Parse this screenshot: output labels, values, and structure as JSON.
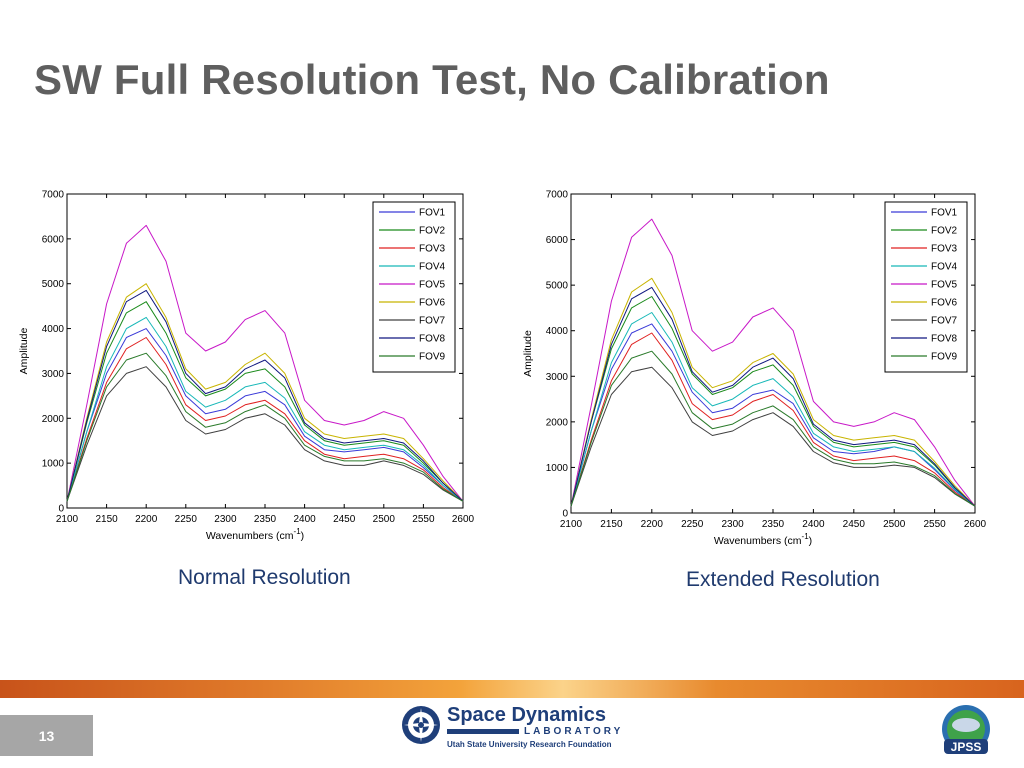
{
  "slide": {
    "title": "SW Full Resolution Test, No Calibration",
    "page_number": "13"
  },
  "captions": {
    "left": "Normal Resolution",
    "right": "Extended Resolution"
  },
  "footer": {
    "logo_main": "Space Dynamics",
    "logo_sub": "LABORATORY",
    "logo_org": "Utah State University Research Foundation",
    "partner_logo": "JPSS"
  },
  "colors": {
    "title": "#5f5f5f",
    "caption": "#1f3a6e",
    "band": "#e07a2a",
    "page_box": "#a6a6a6"
  },
  "chart_data": [
    {
      "type": "line",
      "title": "",
      "xlabel": "Wavenumbers (cm",
      "xlabel_sup": "-1",
      "xlabel_close": ")",
      "ylabel": "Amplitude",
      "xlim": [
        2100,
        2600
      ],
      "ylim": [
        0,
        7000
      ],
      "xticks": [
        2100,
        2150,
        2200,
        2250,
        2300,
        2350,
        2400,
        2450,
        2500,
        2550,
        2600
      ],
      "yticks": [
        0,
        1000,
        2000,
        3000,
        4000,
        5000,
        6000,
        7000
      ],
      "legend_position": "top-right",
      "x": [
        2100,
        2125,
        2150,
        2175,
        2200,
        2225,
        2250,
        2275,
        2300,
        2325,
        2350,
        2375,
        2400,
        2425,
        2450,
        2475,
        2500,
        2525,
        2550,
        2575,
        2600
      ],
      "series": [
        {
          "name": "FOV1",
          "color": "#3a3ad8",
          "values": [
            150,
            1700,
            3000,
            3800,
            4000,
            3400,
            2500,
            2100,
            2200,
            2500,
            2600,
            2300,
            1600,
            1300,
            1250,
            1300,
            1350,
            1250,
            900,
            500,
            150
          ]
        },
        {
          "name": "FOV2",
          "color": "#1a8a1a",
          "values": [
            150,
            1900,
            3450,
            4350,
            4600,
            3900,
            2900,
            2500,
            2650,
            3000,
            3100,
            2700,
            1850,
            1500,
            1400,
            1450,
            1500,
            1400,
            1000,
            550,
            150
          ]
        },
        {
          "name": "FOV3",
          "color": "#e02020",
          "values": [
            150,
            1550,
            2800,
            3550,
            3800,
            3200,
            2300,
            1950,
            2050,
            2300,
            2400,
            2100,
            1500,
            1200,
            1100,
            1150,
            1200,
            1100,
            850,
            450,
            150
          ]
        },
        {
          "name": "FOV4",
          "color": "#18b8b8",
          "values": [
            150,
            1700,
            3150,
            4000,
            4250,
            3600,
            2600,
            2250,
            2400,
            2700,
            2800,
            2450,
            1700,
            1400,
            1300,
            1350,
            1400,
            1300,
            950,
            500,
            150
          ]
        },
        {
          "name": "FOV5",
          "color": "#c818c8",
          "values": [
            150,
            2300,
            4550,
            5900,
            6300,
            5500,
            3900,
            3500,
            3700,
            4200,
            4400,
            3900,
            2400,
            1950,
            1850,
            1950,
            2150,
            2000,
            1400,
            700,
            150
          ]
        },
        {
          "name": "FOV6",
          "color": "#c8b400",
          "values": [
            150,
            2000,
            3700,
            4700,
            5000,
            4250,
            3100,
            2650,
            2800,
            3200,
            3450,
            3000,
            2000,
            1650,
            1550,
            1600,
            1650,
            1550,
            1100,
            600,
            150
          ]
        },
        {
          "name": "FOV7",
          "color": "#404040",
          "values": [
            150,
            1400,
            2500,
            3000,
            3150,
            2700,
            1950,
            1650,
            1750,
            2000,
            2100,
            1850,
            1300,
            1050,
            950,
            950,
            1050,
            950,
            750,
            400,
            150
          ]
        },
        {
          "name": "FOV8",
          "color": "#101880",
          "values": [
            150,
            1950,
            3600,
            4600,
            4850,
            4150,
            3000,
            2550,
            2700,
            3100,
            3300,
            2900,
            1900,
            1550,
            1450,
            1500,
            1550,
            1450,
            1050,
            550,
            150
          ]
        },
        {
          "name": "FOV9",
          "color": "#2a7a2a",
          "values": [
            150,
            1500,
            2700,
            3300,
            3450,
            2950,
            2150,
            1800,
            1900,
            2150,
            2300,
            2000,
            1400,
            1150,
            1050,
            1050,
            1100,
            1000,
            800,
            420,
            150
          ]
        }
      ]
    },
    {
      "type": "line",
      "title": "",
      "xlabel": "Wavenumbers (cm",
      "xlabel_sup": "-1",
      "xlabel_close": ")",
      "ylabel": "Amplitude",
      "xlim": [
        2100,
        2600
      ],
      "ylim": [
        0,
        7000
      ],
      "xticks": [
        2100,
        2150,
        2200,
        2250,
        2300,
        2350,
        2400,
        2450,
        2500,
        2550,
        2600
      ],
      "yticks": [
        0,
        1000,
        2000,
        3000,
        4000,
        5000,
        6000,
        7000
      ],
      "legend_position": "top-right",
      "x": [
        2100,
        2125,
        2150,
        2175,
        2200,
        2225,
        2250,
        2275,
        2300,
        2325,
        2350,
        2375,
        2400,
        2425,
        2450,
        2475,
        2500,
        2525,
        2550,
        2575,
        2600
      ],
      "series": [
        {
          "name": "FOV1",
          "color": "#3a3ad8",
          "values": [
            150,
            1800,
            3150,
            3950,
            4150,
            3550,
            2650,
            2200,
            2300,
            2600,
            2700,
            2400,
            1650,
            1350,
            1300,
            1350,
            1450,
            1350,
            950,
            500,
            150
          ]
        },
        {
          "name": "FOV2",
          "color": "#1a8a1a",
          "values": [
            150,
            2000,
            3600,
            4500,
            4750,
            4050,
            3050,
            2600,
            2750,
            3100,
            3250,
            2800,
            1900,
            1550,
            1450,
            1500,
            1550,
            1450,
            1050,
            550,
            150
          ]
        },
        {
          "name": "FOV3",
          "color": "#e02020",
          "values": [
            150,
            1600,
            2900,
            3700,
            3950,
            3350,
            2400,
            2050,
            2150,
            2450,
            2600,
            2250,
            1550,
            1250,
            1150,
            1200,
            1250,
            1150,
            880,
            460,
            150
          ]
        },
        {
          "name": "FOV4",
          "color": "#18b8b8",
          "values": [
            150,
            1800,
            3300,
            4150,
            4400,
            3750,
            2750,
            2350,
            2500,
            2800,
            2950,
            2550,
            1750,
            1450,
            1350,
            1400,
            1450,
            1350,
            980,
            520,
            150
          ]
        },
        {
          "name": "FOV5",
          "color": "#c818c8",
          "values": [
            150,
            2350,
            4650,
            6050,
            6450,
            5650,
            4000,
            3550,
            3750,
            4300,
            4500,
            4000,
            2450,
            2000,
            1900,
            2000,
            2200,
            2050,
            1450,
            720,
            150
          ]
        },
        {
          "name": "FOV6",
          "color": "#c8b400",
          "values": [
            150,
            2050,
            3800,
            4850,
            5150,
            4400,
            3200,
            2750,
            2900,
            3300,
            3500,
            3050,
            2050,
            1700,
            1600,
            1650,
            1700,
            1600,
            1130,
            600,
            150
          ]
        },
        {
          "name": "FOV7",
          "color": "#404040",
          "values": [
            150,
            1450,
            2600,
            3100,
            3200,
            2750,
            2000,
            1700,
            1800,
            2050,
            2200,
            1900,
            1350,
            1100,
            1000,
            1000,
            1050,
            1000,
            780,
            420,
            150
          ]
        },
        {
          "name": "FOV8",
          "color": "#101880",
          "values": [
            150,
            2000,
            3700,
            4700,
            4950,
            4250,
            3100,
            2650,
            2800,
            3200,
            3400,
            2950,
            1950,
            1600,
            1500,
            1550,
            1600,
            1500,
            1080,
            560,
            150
          ]
        },
        {
          "name": "FOV9",
          "color": "#2a7a2a",
          "values": [
            150,
            1550,
            2800,
            3400,
            3550,
            3050,
            2200,
            1850,
            1950,
            2200,
            2350,
            2050,
            1450,
            1180,
            1080,
            1080,
            1120,
            1030,
            820,
            430,
            150
          ]
        }
      ]
    }
  ]
}
